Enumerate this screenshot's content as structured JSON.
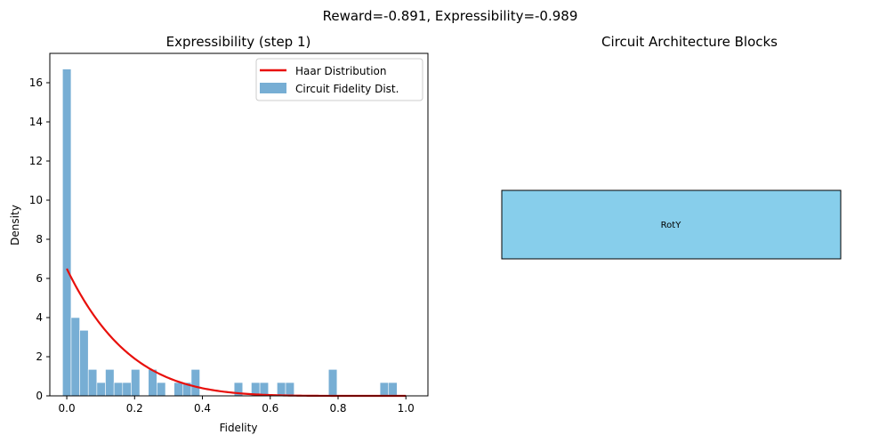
{
  "figure": {
    "suptitle": "Reward=-0.891, Expressibility=-0.989"
  },
  "chart_data": [
    {
      "type": "bar",
      "title": "Expressibility (step 1)",
      "xlabel": "Fidelity",
      "ylabel": "Density",
      "xlim": [
        -0.05,
        1.065
      ],
      "ylim": [
        0,
        17.5
      ],
      "xticks": [
        0.0,
        0.2,
        0.4,
        0.6,
        0.8,
        1.0
      ],
      "xtick_labels": [
        "0.0",
        "0.2",
        "0.4",
        "0.6",
        "0.8",
        "1.0"
      ],
      "yticks": [
        0,
        2,
        4,
        6,
        8,
        10,
        12,
        14,
        16
      ],
      "ytick_labels": [
        "0",
        "2",
        "4",
        "6",
        "8",
        "10",
        "12",
        "14",
        "16"
      ],
      "legend_position": "upper-right",
      "grid": false,
      "series": [
        {
          "name": "Haar Distribution",
          "kind": "line",
          "color": "#e8100c",
          "formula": "(N-1)*(1-F)^(N-2)",
          "N": 7.5,
          "x_range": [
            0.0,
            1.0
          ]
        },
        {
          "name": "Circuit Fidelity Dist.",
          "kind": "histogram",
          "color": "#77aed4",
          "bin_start": -0.0125,
          "bin_width": 0.0253,
          "values": [
            16.7,
            4.0,
            3.35,
            1.35,
            0.68,
            1.35,
            0.68,
            0.68,
            1.35,
            0,
            1.35,
            0.68,
            0,
            0.68,
            0.68,
            1.35,
            0,
            0,
            0,
            0,
            0.68,
            0,
            0.68,
            0.68,
            0,
            0.68,
            0.68,
            0,
            0,
            0,
            0,
            1.35,
            0,
            0,
            0,
            0,
            0,
            0.68,
            0.68
          ]
        }
      ]
    },
    {
      "type": "diagram",
      "title": "Circuit Architecture Blocks",
      "blocks": [
        {
          "label": "RotY",
          "color": "#87ceeb"
        }
      ]
    }
  ]
}
